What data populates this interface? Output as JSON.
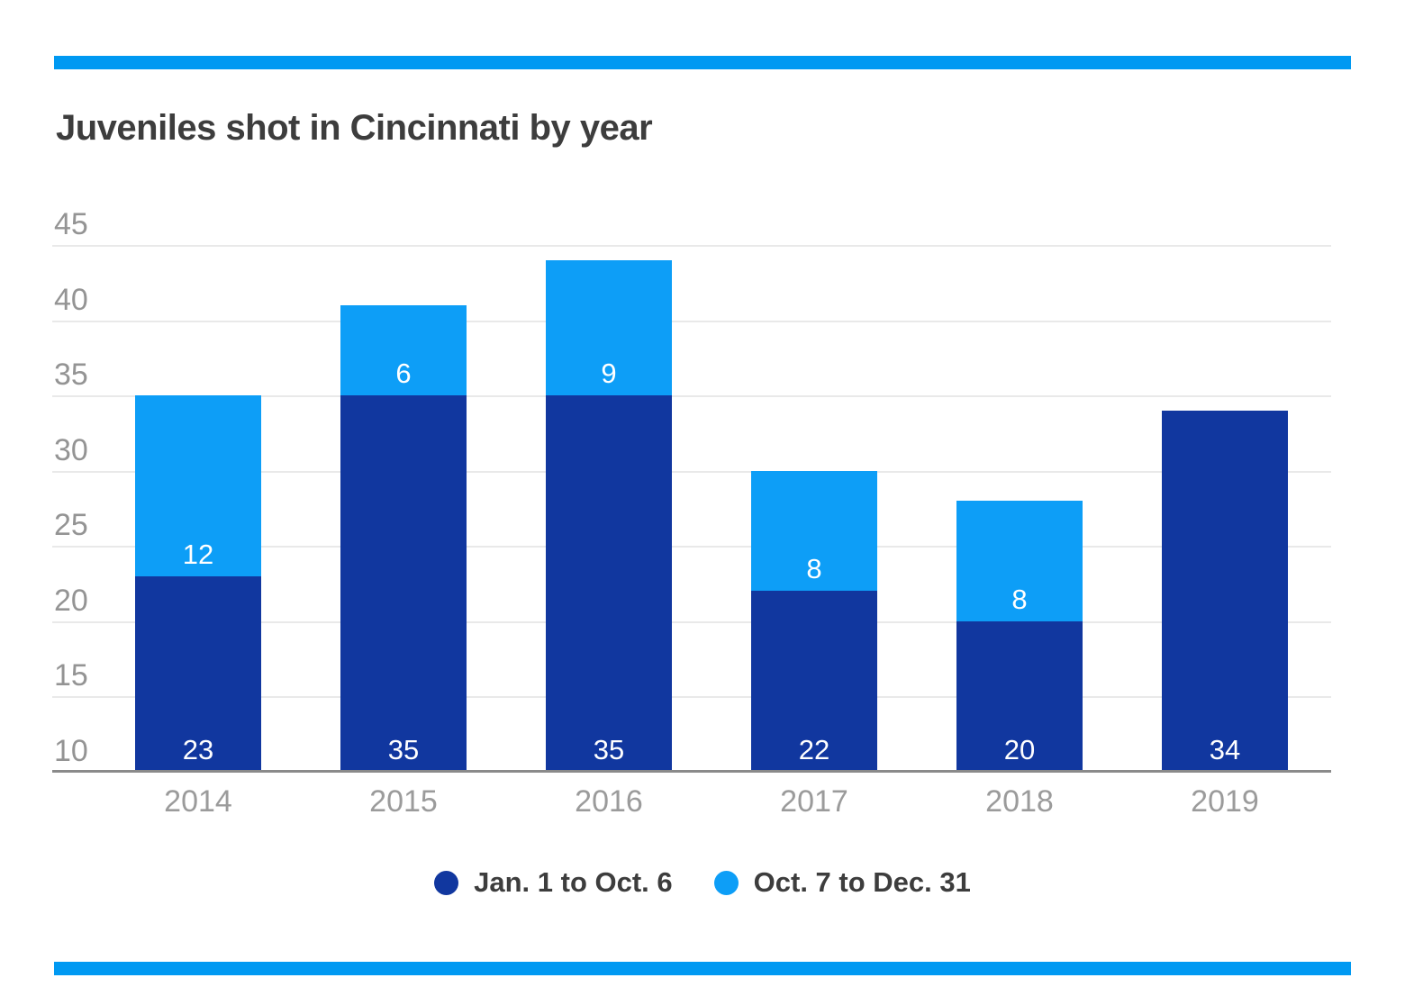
{
  "colors": {
    "accent_rule": "#0099f2",
    "bar_dark": "#11379f",
    "bar_light": "#0d9ef7",
    "title_text": "#3d3d3d",
    "axis_text": "#949494",
    "gridline": "#e9e9e9",
    "axis_line": "#8a8a8a",
    "bar_label_text": "#ffffff"
  },
  "chart_data": {
    "type": "bar",
    "stacked": true,
    "title": "Juveniles shot in Cincinnati by year",
    "categories": [
      "2014",
      "2015",
      "2016",
      "2017",
      "2018",
      "2019"
    ],
    "series": [
      {
        "name": "Jan. 1 to Oct. 6",
        "color": "#11379f",
        "values": [
          23,
          35,
          35,
          22,
          20,
          34
        ]
      },
      {
        "name": "Oct. 7 to Dec. 31",
        "color": "#0d9ef7",
        "values": [
          12,
          6,
          9,
          8,
          8,
          0
        ]
      }
    ],
    "stack_totals": [
      35,
      41,
      44,
      30,
      28,
      34
    ],
    "ylim": [
      10,
      45
    ],
    "yticks": [
      45,
      40,
      35,
      30,
      25,
      20,
      15,
      10
    ],
    "xlabel": "",
    "ylabel": "",
    "grid": true,
    "legend_position": "bottom",
    "bar_value_labels_visible": true
  }
}
